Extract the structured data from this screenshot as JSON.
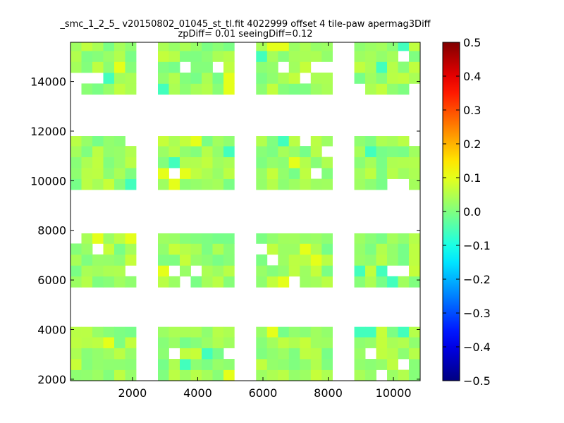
{
  "chart_data": {
    "type": "heatmap",
    "title": "_smc_1_2_5_ v20150802_01045_st_tl.fit 4022999 offset 4 tile-paw apermag3Diff",
    "subtitle": "zpDiff= 0.01 seeingDiff=0.12",
    "xlabel": "",
    "ylabel": "",
    "xlim": [
      100,
      10820
    ],
    "ylim": [
      1940,
      15580
    ],
    "x_ticks": [
      2000,
      4000,
      6000,
      8000,
      10000
    ],
    "y_ticks": [
      2000,
      4000,
      6000,
      8000,
      10000,
      12000,
      14000
    ],
    "grid": false,
    "colorbar": {
      "colormap": "jet",
      "range": [
        -0.5,
        0.5
      ],
      "ticks": [
        0.5,
        0.4,
        0.3,
        0.2,
        0.1,
        0.0,
        -0.1,
        -0.2,
        -0.3,
        -0.4,
        -0.5
      ],
      "tick_labels": [
        "0.5",
        "0.4",
        "0.3",
        "0.2",
        "0.1",
        "0.0",
        "−0.1",
        "−0.2",
        "−0.3",
        "−0.4",
        "−0.5"
      ]
    },
    "cell_size": [
      335,
      440
    ],
    "value_note": "cells mostly near 0.0 to 0.05, a few near 0.1 and -0.05",
    "blocks": [
      {
        "x": [
          100,
          2110
        ],
        "y": [
          1940,
          4110
        ],
        "value": 0.03
      },
      {
        "x": [
          2780,
          5120
        ],
        "y": [
          1940,
          4110
        ],
        "value": 0.03
      },
      {
        "x": [
          5790,
          8130
        ],
        "y": [
          1940,
          4110
        ],
        "value": 0.03
      },
      {
        "x": [
          8800,
          10820
        ],
        "y": [
          1940,
          4110
        ],
        "value": 0.03
      },
      {
        "x": [
          100,
          2110
        ],
        "y": [
          5710,
          7880
        ],
        "value": 0.03
      },
      {
        "x": [
          2780,
          5120
        ],
        "y": [
          5710,
          7880
        ],
        "value": 0.03
      },
      {
        "x": [
          5790,
          8130
        ],
        "y": [
          5710,
          7880
        ],
        "value": 0.03
      },
      {
        "x": [
          8800,
          10820
        ],
        "y": [
          5710,
          7880
        ],
        "value": 0.03
      },
      {
        "x": [
          100,
          2110
        ],
        "y": [
          9640,
          11800
        ],
        "value": 0.03
      },
      {
        "x": [
          2780,
          5120
        ],
        "y": [
          9640,
          11800
        ],
        "value": 0.03
      },
      {
        "x": [
          5790,
          8130
        ],
        "y": [
          9640,
          11800
        ],
        "value": 0.03
      },
      {
        "x": [
          8800,
          10820
        ],
        "y": [
          9640,
          11800
        ],
        "value": 0.03
      },
      {
        "x": [
          100,
          2110
        ],
        "y": [
          13480,
          15580
        ],
        "value": 0.03
      },
      {
        "x": [
          2780,
          5120
        ],
        "y": [
          13480,
          15580
        ],
        "value": 0.03
      },
      {
        "x": [
          5790,
          8130
        ],
        "y": [
          13480,
          15580
        ],
        "value": 0.03
      },
      {
        "x": [
          8800,
          10820
        ],
        "y": [
          13480,
          15580
        ],
        "value": 0.03
      }
    ]
  }
}
